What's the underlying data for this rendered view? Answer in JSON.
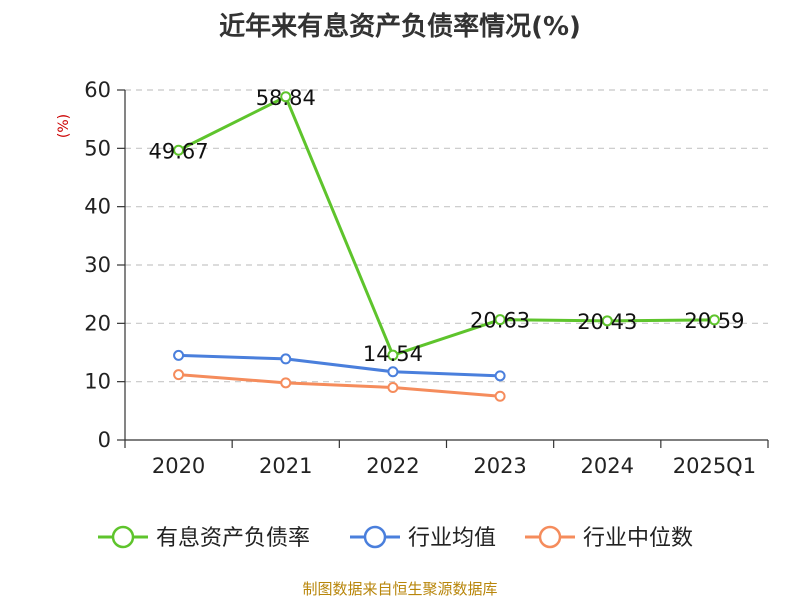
{
  "chart_data": {
    "type": "line",
    "title": "近年来有息资产负债率情况(%)",
    "ylabel": "(%)",
    "categories": [
      "2020",
      "2021",
      "2022",
      "2023",
      "2024",
      "2025Q1"
    ],
    "ylim": [
      0,
      60
    ],
    "yticks": [
      "0",
      "10",
      "20",
      "30",
      "40",
      "50",
      "60"
    ],
    "grid": true,
    "legend_position": "bottom",
    "series": [
      {
        "name": "有息资产负债率",
        "color": "#5ec42c",
        "values": [
          49.67,
          58.84,
          14.54,
          20.63,
          20.43,
          20.59
        ],
        "labels": [
          "49.67",
          "58.84",
          "14.54",
          "20.63",
          "20.43",
          "20.59"
        ]
      },
      {
        "name": "行业均值",
        "color": "#4a7fdc",
        "values": [
          14.5,
          13.9,
          11.7,
          11.0,
          null,
          null
        ]
      },
      {
        "name": "行业中位数",
        "color": "#f58c5c",
        "values": [
          11.2,
          9.8,
          9.0,
          7.5,
          null,
          null
        ]
      }
    ]
  },
  "source": "制图数据来自恒生聚源数据库"
}
